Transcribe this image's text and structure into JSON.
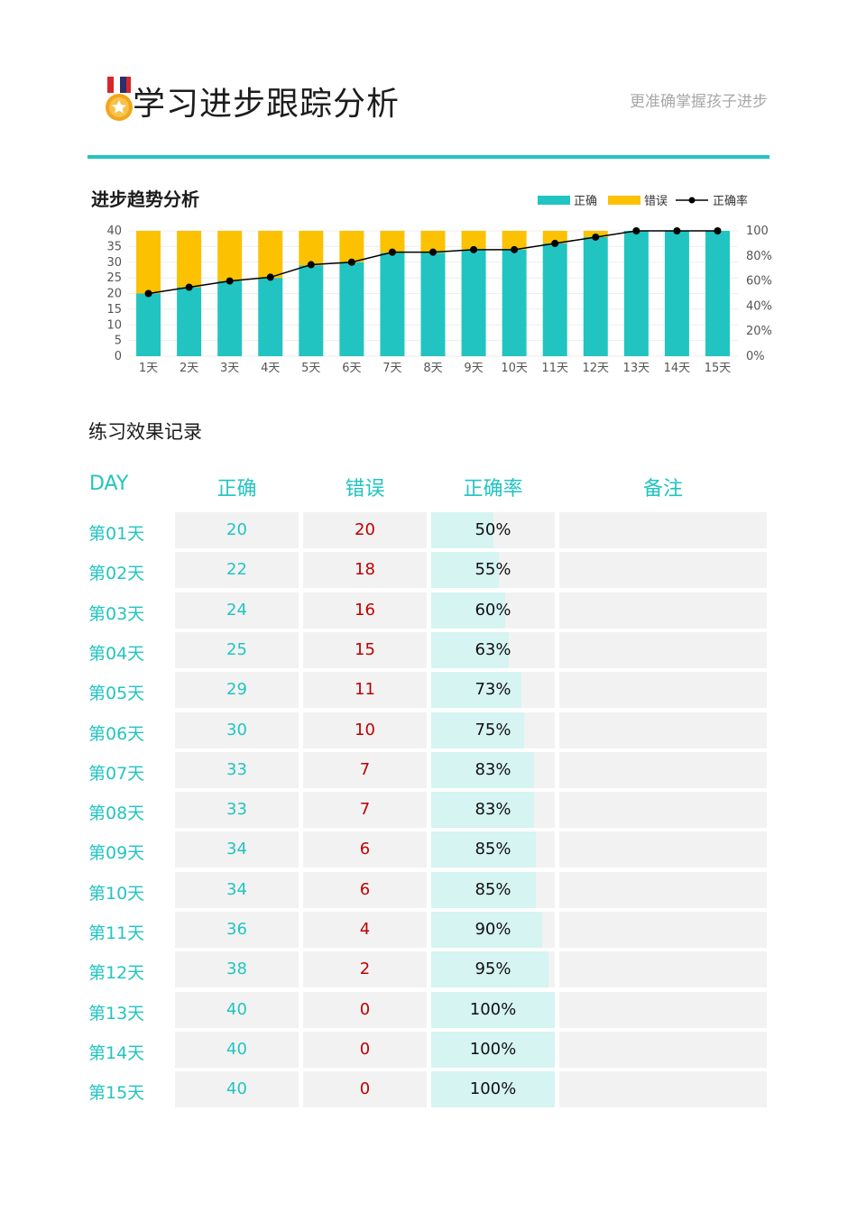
{
  "header": {
    "title": "学习进步跟踪分析",
    "subtitle": "更准确掌握孩子进步"
  },
  "colors": {
    "accent": "#22c4c1",
    "error": "#fcc100",
    "line": "#000000",
    "wrong_text": "#c00000"
  },
  "chart_section": {
    "title": "进步趋势分析"
  },
  "chart_data": {
    "type": "bar",
    "stacked": true,
    "categories": [
      "1天",
      "2天",
      "3天",
      "4天",
      "5天",
      "6天",
      "7天",
      "8天",
      "9天",
      "10天",
      "11天",
      "12天",
      "13天",
      "14天",
      "15天"
    ],
    "series": [
      {
        "name": "正确",
        "type": "bar",
        "axis": "left",
        "values": [
          20,
          22,
          24,
          25,
          29,
          30,
          33,
          33,
          34,
          34,
          36,
          38,
          40,
          40,
          40
        ]
      },
      {
        "name": "错误",
        "type": "bar",
        "axis": "left",
        "values": [
          20,
          18,
          16,
          15,
          11,
          10,
          7,
          7,
          6,
          6,
          4,
          2,
          0,
          0,
          0
        ]
      },
      {
        "name": "正确率",
        "type": "line",
        "axis": "right",
        "values": [
          50,
          55,
          60,
          63,
          73,
          75,
          83,
          83,
          85,
          85,
          90,
          95,
          100,
          100,
          100
        ]
      }
    ],
    "ylim": [
      0,
      40
    ],
    "y_ticks": [
      "0",
      "5",
      "10",
      "15",
      "20",
      "25",
      "30",
      "35",
      "40"
    ],
    "y2lim": [
      0,
      100
    ],
    "y2_ticks": [
      "0%",
      "20%",
      "40%",
      "60%",
      "80%",
      "100"
    ],
    "legend_position": "top-right",
    "grid": true
  },
  "table_section": {
    "title": "练习效果记录",
    "headers": {
      "day": "DAY",
      "correct": "正确",
      "wrong": "错误",
      "rate": "正确率",
      "note": "备注"
    },
    "rows": [
      {
        "day": "第01天",
        "correct": "20",
        "wrong": "20",
        "rate": "50%",
        "rate_value": 0.5,
        "note": ""
      },
      {
        "day": "第02天",
        "correct": "22",
        "wrong": "18",
        "rate": "55%",
        "rate_value": 0.55,
        "note": ""
      },
      {
        "day": "第03天",
        "correct": "24",
        "wrong": "16",
        "rate": "60%",
        "rate_value": 0.6,
        "note": ""
      },
      {
        "day": "第04天",
        "correct": "25",
        "wrong": "15",
        "rate": "63%",
        "rate_value": 0.63,
        "note": ""
      },
      {
        "day": "第05天",
        "correct": "29",
        "wrong": "11",
        "rate": "73%",
        "rate_value": 0.73,
        "note": ""
      },
      {
        "day": "第06天",
        "correct": "30",
        "wrong": "10",
        "rate": "75%",
        "rate_value": 0.75,
        "note": ""
      },
      {
        "day": "第07天",
        "correct": "33",
        "wrong": "7",
        "rate": "83%",
        "rate_value": 0.83,
        "note": ""
      },
      {
        "day": "第08天",
        "correct": "33",
        "wrong": "7",
        "rate": "83%",
        "rate_value": 0.83,
        "note": ""
      },
      {
        "day": "第09天",
        "correct": "34",
        "wrong": "6",
        "rate": "85%",
        "rate_value": 0.85,
        "note": ""
      },
      {
        "day": "第10天",
        "correct": "34",
        "wrong": "6",
        "rate": "85%",
        "rate_value": 0.85,
        "note": ""
      },
      {
        "day": "第11天",
        "correct": "36",
        "wrong": "4",
        "rate": "90%",
        "rate_value": 0.9,
        "note": ""
      },
      {
        "day": "第12天",
        "correct": "38",
        "wrong": "2",
        "rate": "95%",
        "rate_value": 0.95,
        "note": ""
      },
      {
        "day": "第13天",
        "correct": "40",
        "wrong": "0",
        "rate": "100%",
        "rate_value": 1.0,
        "note": ""
      },
      {
        "day": "第14天",
        "correct": "40",
        "wrong": "0",
        "rate": "100%",
        "rate_value": 1.0,
        "note": ""
      },
      {
        "day": "第15天",
        "correct": "40",
        "wrong": "0",
        "rate": "100%",
        "rate_value": 1.0,
        "note": ""
      }
    ]
  }
}
